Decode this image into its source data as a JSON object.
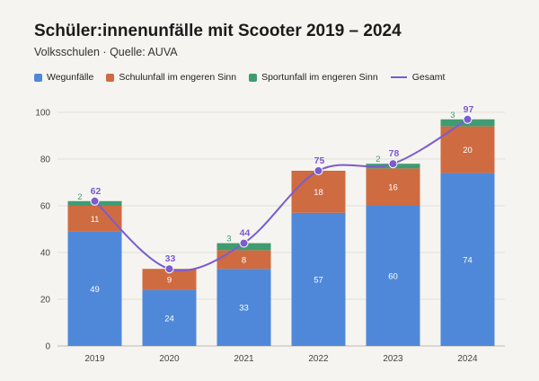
{
  "header": {
    "title": "Schüler:innenunfälle mit Scooter 2019 – 2024",
    "subtitle": "Volksschulen · Quelle: AUVA"
  },
  "colors": {
    "wegunfaelle": "#4f88d8",
    "schulunfall": "#cf6b40",
    "sportunfall": "#3f9c72",
    "gesamt": "#7a5ccf"
  },
  "chart_data": {
    "type": "bar",
    "stacked": true,
    "categories": [
      "2019",
      "2020",
      "2021",
      "2022",
      "2023",
      "2024"
    ],
    "series": [
      {
        "name": "Wegunfälle",
        "values": [
          49,
          24,
          33,
          57,
          60,
          74
        ]
      },
      {
        "name": "Schulunfall im engeren Sinn",
        "values": [
          11,
          9,
          8,
          18,
          16,
          20
        ]
      },
      {
        "name": "Sportunfall im engeren Sinn",
        "values": [
          2,
          0,
          3,
          0,
          2,
          3
        ]
      }
    ],
    "line_series": {
      "name": "Gesamt",
      "values": [
        62,
        33,
        44,
        75,
        78,
        97
      ]
    },
    "ylim": [
      0,
      100
    ],
    "yticks": [
      0,
      20,
      40,
      60,
      80,
      100
    ],
    "grid": true,
    "legend_position": "top-left",
    "xlabel": "",
    "ylabel": ""
  }
}
